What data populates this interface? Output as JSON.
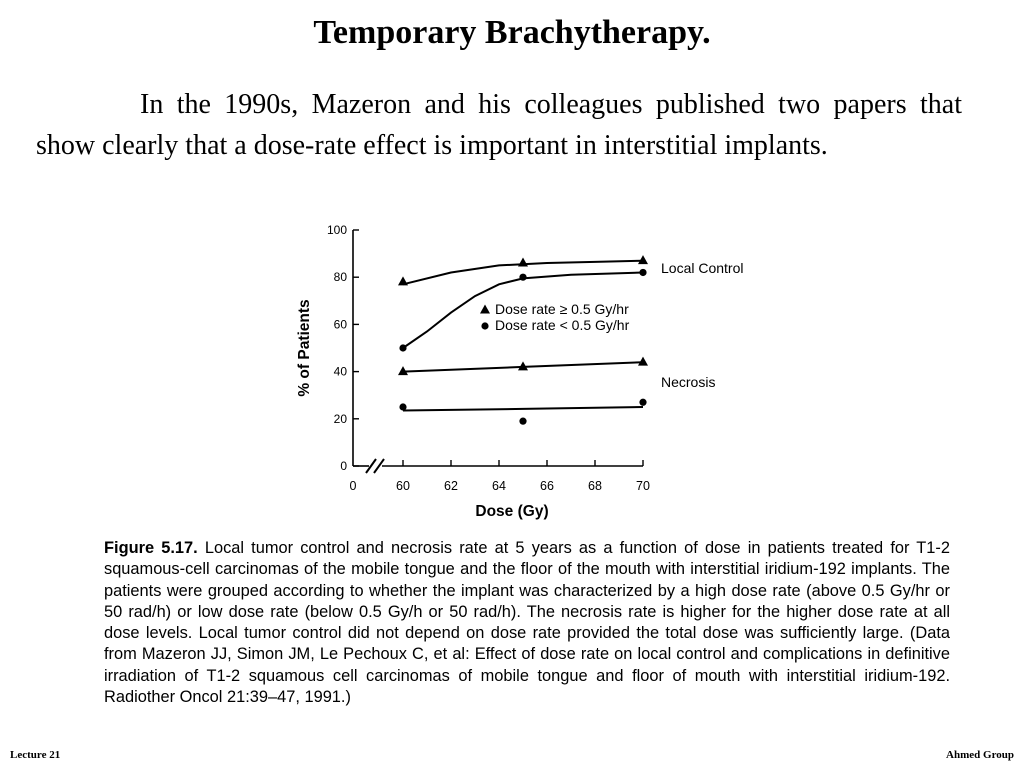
{
  "slide": {
    "title": "Temporary Brachytherapy.",
    "paragraph": "In the 1990s, Mazeron and his colleagues published two papers that show clearly that a dose-rate effect is important in interstitial implants.",
    "caption_label": "Figure 5.17.",
    "caption_text": "Local tumor control and necrosis rate at 5 years as a function of dose in patients treated for T1-2 squamous-cell carcinomas of the mobile tongue and the floor of the mouth with interstitial iridium-192 implants. The patients were grouped according to whether the implant was characterized by a high dose rate (above 0.5 Gy/hr or 50 rad/h) or low dose rate (below 0.5 Gy/h or 50 rad/h). The necrosis rate is higher for the higher dose rate at all dose levels. Local tumor control did not depend on dose rate provided the total dose was sufficiently large. (Data from Mazeron JJ, Simon JM, Le Pechoux C, et al: Effect of dose rate on local control and complications in definitive irradiation of T1-2 squamous cell carcinomas of mobile tongue and floor of mouth with interstitial iridium-192. Radiother Oncol 21:39–47, 1991.)",
    "footer_left": "Lecture 21",
    "footer_right": "Ahmed Group"
  },
  "chart_data": {
    "type": "line",
    "xlabel": "Dose (Gy)",
    "ylabel": "% of Patients",
    "x_ticks": [
      "0",
      "60",
      "62",
      "64",
      "66",
      "68",
      "70"
    ],
    "y_ticks": [
      0,
      20,
      40,
      60,
      80,
      100
    ],
    "xlim": [
      60,
      70
    ],
    "ylim": [
      0,
      100
    ],
    "axis_break": true,
    "legend": [
      {
        "marker": "triangle",
        "label": "Dose rate ≥ 0.5 Gy/hr"
      },
      {
        "marker": "circle",
        "label": "Dose rate < 0.5 Gy/hr"
      }
    ],
    "annotations": [
      "Local Control",
      "Necrosis"
    ],
    "series": [
      {
        "marker": "triangle",
        "x": [
          60,
          65,
          70
        ],
        "y": [
          78,
          86,
          87
        ]
      },
      {
        "marker": "circle",
        "x": [
          60,
          65,
          70
        ],
        "y": [
          50,
          80,
          82
        ]
      },
      {
        "marker": "triangle",
        "x": [
          60,
          65,
          70
        ],
        "y": [
          40,
          42,
          44
        ]
      },
      {
        "marker": "circle",
        "x": [
          60,
          65,
          70
        ],
        "y": [
          25,
          19,
          27
        ]
      }
    ],
    "curves": [
      {
        "points": [
          [
            60,
            77
          ],
          [
            62,
            82
          ],
          [
            64,
            85
          ],
          [
            66,
            86
          ],
          [
            68,
            86.5
          ],
          [
            70,
            87
          ]
        ]
      },
      {
        "points": [
          [
            60,
            50
          ],
          [
            61,
            57
          ],
          [
            62,
            65
          ],
          [
            63,
            72
          ],
          [
            64,
            77
          ],
          [
            65,
            79.5
          ],
          [
            67,
            81
          ],
          [
            70,
            82
          ]
        ]
      },
      {
        "points": [
          [
            60,
            40
          ],
          [
            65,
            42
          ],
          [
            70,
            44
          ]
        ]
      },
      {
        "points": [
          [
            60,
            23.5
          ],
          [
            65,
            24.2
          ],
          [
            70,
            25
          ]
        ]
      }
    ]
  }
}
